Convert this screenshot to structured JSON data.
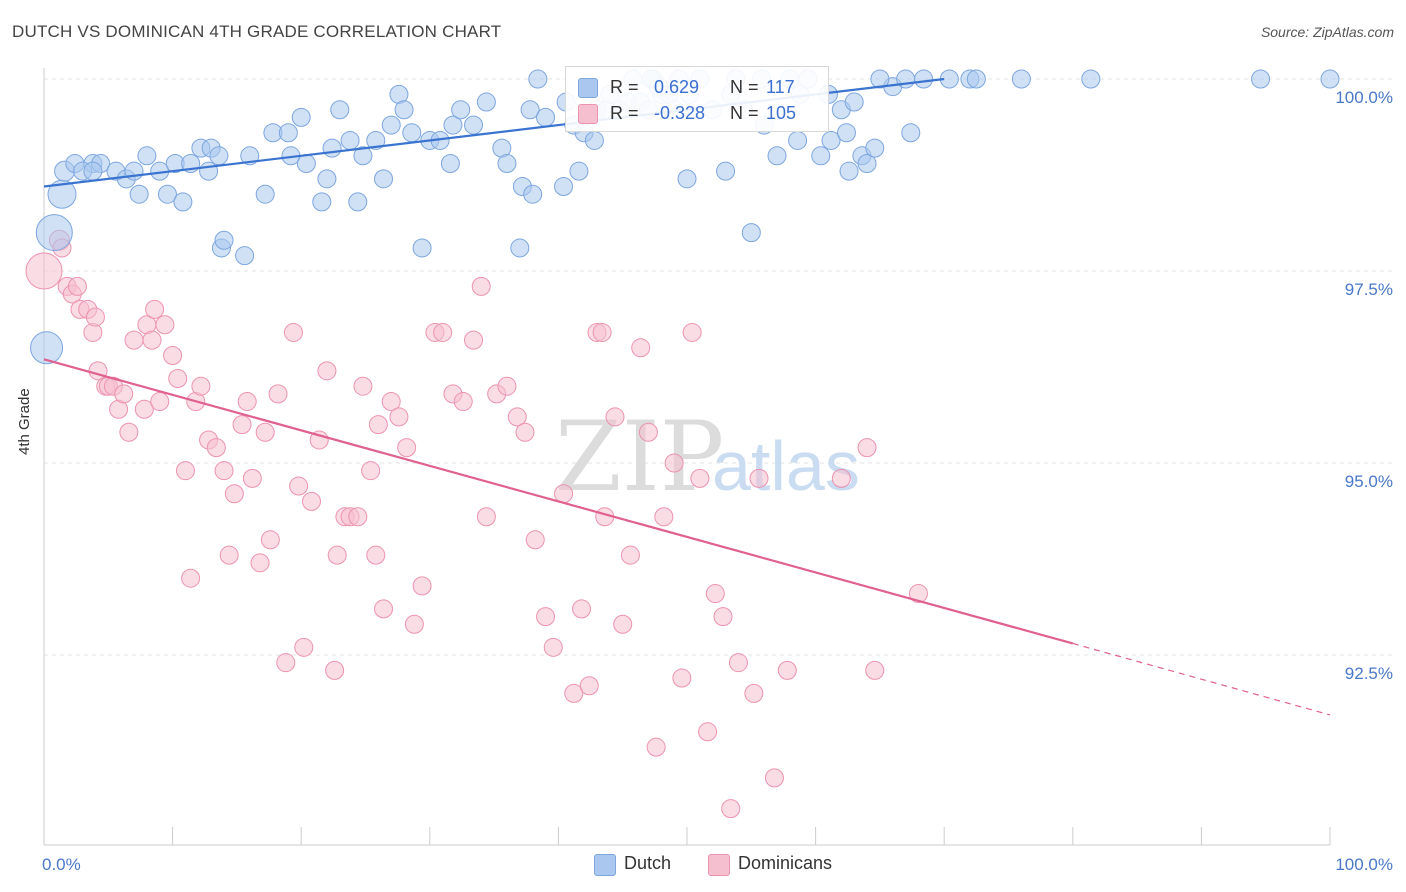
{
  "header": {
    "title": "DUTCH VS DOMINICAN 4TH GRADE CORRELATION CHART",
    "source": "Source: ZipAtlas.com"
  },
  "legend": {
    "series": [
      {
        "r_label": "R =",
        "r_value": "0.629",
        "n_label": "N =",
        "n_value": "117"
      },
      {
        "r_label": "R =",
        "r_value": "-0.328",
        "n_label": "N =",
        "n_value": "105"
      }
    ]
  },
  "bottom_legend": {
    "dutch": "Dutch",
    "dominicans": "Dominicans"
  },
  "watermark": {
    "zip": "ZIP",
    "atlas": "atlas"
  },
  "colors": {
    "dutch_fill": "#aac8ef",
    "dutch_stroke": "#7da6de",
    "dutch_line": "#3a74d0",
    "dom_fill": "#f6bfd0",
    "dom_stroke": "#ec93b0",
    "dom_line": "#e0608f",
    "tick_text": "#4a78c8",
    "grid": "#e3e3e3"
  },
  "chart_data": {
    "type": "scatter",
    "title": "DUTCH VS DOMINICAN 4TH GRADE CORRELATION CHART",
    "xlabel": "",
    "ylabel": "4th Grade",
    "xlim": [
      0,
      100
    ],
    "ylim": [
      90.25,
      100.25
    ],
    "x_tick_labels": [
      "0.0%",
      "100.0%"
    ],
    "y_ticks": [
      92.5,
      95.0,
      97.5,
      100.0
    ],
    "y_tick_labels": [
      "92.5%",
      "95.0%",
      "97.5%",
      "100.0%"
    ],
    "grid": true,
    "legend_position": "top-center",
    "series": [
      {
        "name": "Dutch",
        "r": 0.629,
        "n": 117,
        "trend": {
          "x": [
            0,
            70
          ],
          "y": [
            98.6,
            100.0
          ]
        },
        "points": [
          [
            1.4,
            98.5,
            14
          ],
          [
            0.8,
            98.0,
            18
          ],
          [
            0.2,
            96.5,
            16
          ],
          [
            1.6,
            98.8,
            10
          ],
          [
            2.4,
            98.9,
            9
          ],
          [
            3.8,
            98.9,
            9
          ],
          [
            4.4,
            98.9,
            9
          ],
          [
            3.0,
            98.8,
            9
          ],
          [
            3.8,
            98.8,
            9
          ],
          [
            5.6,
            98.8,
            9
          ],
          [
            6.4,
            98.7,
            9
          ],
          [
            7.0,
            98.8,
            9
          ],
          [
            8.0,
            99.0,
            9
          ],
          [
            9.0,
            98.8,
            9
          ],
          [
            7.4,
            98.5,
            9
          ],
          [
            9.6,
            98.5,
            9
          ],
          [
            10.2,
            98.9,
            9
          ],
          [
            10.8,
            98.4,
            9
          ],
          [
            11.4,
            98.9,
            9
          ],
          [
            12.2,
            99.1,
            9
          ],
          [
            12.8,
            98.8,
            9
          ],
          [
            13.0,
            99.1,
            9
          ],
          [
            13.6,
            99.0,
            9
          ],
          [
            13.8,
            97.8,
            9
          ],
          [
            15.6,
            97.7,
            9
          ],
          [
            14.0,
            97.9,
            9
          ],
          [
            16.0,
            99.0,
            9
          ],
          [
            17.2,
            98.5,
            9
          ],
          [
            17.8,
            99.3,
            9
          ],
          [
            19.0,
            99.3,
            9
          ],
          [
            19.2,
            99.0,
            9
          ],
          [
            20.0,
            99.5,
            9
          ],
          [
            20.4,
            98.9,
            9
          ],
          [
            22.4,
            99.1,
            9
          ],
          [
            22.0,
            98.7,
            9
          ],
          [
            21.6,
            98.4,
            9
          ],
          [
            23.0,
            99.6,
            9
          ],
          [
            23.8,
            99.2,
            9
          ],
          [
            24.4,
            98.4,
            9
          ],
          [
            24.8,
            99.0,
            9
          ],
          [
            25.8,
            99.2,
            9
          ],
          [
            26.4,
            98.7,
            9
          ],
          [
            27.0,
            99.4,
            9
          ],
          [
            27.6,
            99.8,
            9
          ],
          [
            28.0,
            99.6,
            9
          ],
          [
            28.6,
            99.3,
            9
          ],
          [
            29.4,
            97.8,
            9
          ],
          [
            30.0,
            99.2,
            9
          ],
          [
            30.8,
            99.2,
            9
          ],
          [
            31.8,
            99.4,
            9
          ],
          [
            31.6,
            98.9,
            9
          ],
          [
            32.4,
            99.6,
            9
          ],
          [
            33.4,
            99.4,
            9
          ],
          [
            34.4,
            99.7,
            9
          ],
          [
            35.6,
            99.1,
            9
          ],
          [
            36.0,
            98.9,
            9
          ],
          [
            37.2,
            98.6,
            9
          ],
          [
            37.8,
            99.6,
            9
          ],
          [
            38.4,
            100.0,
            9
          ],
          [
            39.0,
            99.5,
            9
          ],
          [
            40.4,
            98.6,
            9
          ],
          [
            40.6,
            99.7,
            9
          ],
          [
            41.2,
            99.4,
            9
          ],
          [
            41.6,
            98.8,
            9
          ],
          [
            42.0,
            99.3,
            9
          ],
          [
            42.8,
            99.2,
            9
          ],
          [
            43.0,
            99.6,
            9
          ],
          [
            43.8,
            99.6,
            9
          ],
          [
            44.0,
            99.8,
            9
          ],
          [
            44.8,
            99.6,
            9
          ],
          [
            45.4,
            99.7,
            9
          ],
          [
            45.8,
            100.0,
            9
          ],
          [
            46.4,
            99.7,
            9
          ],
          [
            47.4,
            100.0,
            9
          ],
          [
            48.0,
            99.8,
            9
          ],
          [
            48.6,
            99.8,
            9
          ],
          [
            49.4,
            100.0,
            9
          ],
          [
            50.2,
            99.8,
            9
          ],
          [
            51.0,
            100.0,
            9
          ],
          [
            52.0,
            99.6,
            9
          ],
          [
            53.4,
            99.8,
            9
          ],
          [
            53.8,
            100.0,
            9
          ],
          [
            54.4,
            99.6,
            9
          ],
          [
            56.0,
            99.4,
            9
          ],
          [
            57.0,
            99.0,
            9
          ],
          [
            58.0,
            100.0,
            9
          ],
          [
            58.6,
            99.2,
            9
          ],
          [
            59.4,
            100.0,
            9
          ],
          [
            60.4,
            99.0,
            9
          ],
          [
            61.2,
            99.2,
            9
          ],
          [
            63.6,
            99.0,
            9
          ],
          [
            62.4,
            99.3,
            9
          ],
          [
            64.0,
            98.9,
            9
          ],
          [
            66.0,
            99.9,
            9
          ],
          [
            67.0,
            100.0,
            9
          ],
          [
            68.4,
            100.0,
            9
          ],
          [
            62.6,
            98.8,
            9
          ],
          [
            64.6,
            99.1,
            9
          ],
          [
            67.4,
            99.3,
            9
          ],
          [
            70.4,
            100.0,
            9
          ],
          [
            72.0,
            100.0,
            9
          ],
          [
            50.0,
            98.7,
            9
          ],
          [
            53.0,
            98.8,
            9
          ],
          [
            55.0,
            98.0,
            9
          ],
          [
            47.0,
            99.6,
            9
          ],
          [
            37.0,
            97.8,
            9
          ],
          [
            38.0,
            98.5,
            9
          ],
          [
            47.8,
            99.9,
            9
          ],
          [
            55.8,
            100.0,
            9
          ],
          [
            58.8,
            99.8,
            9
          ],
          [
            61.0,
            99.8,
            9
          ],
          [
            62.0,
            99.6,
            9
          ],
          [
            63.0,
            99.7,
            9
          ],
          [
            65.0,
            100.0,
            9
          ],
          [
            72.5,
            100.0,
            9
          ],
          [
            76.0,
            100.0,
            9
          ],
          [
            81.4,
            100.0,
            9
          ],
          [
            94.6,
            100.0,
            9
          ],
          [
            100.0,
            100.0,
            9
          ],
          [
            47.2,
            100.0,
            9
          ],
          [
            49.0,
            99.6,
            9
          ]
        ]
      },
      {
        "name": "Dominicans",
        "r": -0.328,
        "n": 105,
        "trend": {
          "x": [
            0,
            80
          ],
          "y": [
            96.35,
            92.65
          ]
        },
        "trend_dashed": {
          "x": [
            80,
            100
          ],
          "y": [
            92.65,
            91.72
          ]
        },
        "points": [
          [
            0.0,
            97.5,
            18
          ],
          [
            1.2,
            97.9,
            10
          ],
          [
            1.4,
            97.8,
            9
          ],
          [
            1.8,
            97.3,
            9
          ],
          [
            2.2,
            97.2,
            9
          ],
          [
            2.6,
            97.3,
            9
          ],
          [
            2.8,
            97.0,
            9
          ],
          [
            3.4,
            97.0,
            9
          ],
          [
            3.8,
            96.7,
            9
          ],
          [
            4.0,
            96.9,
            9
          ],
          [
            4.2,
            96.2,
            9
          ],
          [
            4.8,
            96.0,
            9
          ],
          [
            5.0,
            96.0,
            9
          ],
          [
            5.4,
            96.0,
            9
          ],
          [
            5.8,
            95.7,
            9
          ],
          [
            6.2,
            95.9,
            9
          ],
          [
            6.6,
            95.4,
            9
          ],
          [
            7.0,
            96.6,
            9
          ],
          [
            7.8,
            95.7,
            9
          ],
          [
            8.0,
            96.8,
            9
          ],
          [
            8.4,
            96.6,
            9
          ],
          [
            8.6,
            97.0,
            9
          ],
          [
            9.0,
            95.8,
            9
          ],
          [
            9.4,
            96.8,
            9
          ],
          [
            10.0,
            96.4,
            9
          ],
          [
            10.4,
            96.1,
            9
          ],
          [
            11.0,
            94.9,
            9
          ],
          [
            11.4,
            93.5,
            9
          ],
          [
            11.8,
            95.8,
            9
          ],
          [
            12.2,
            96.0,
            9
          ],
          [
            12.8,
            95.3,
            9
          ],
          [
            13.4,
            95.2,
            9
          ],
          [
            14.0,
            94.9,
            9
          ],
          [
            14.4,
            93.8,
            9
          ],
          [
            14.8,
            94.6,
            9
          ],
          [
            15.4,
            95.5,
            9
          ],
          [
            15.8,
            95.8,
            9
          ],
          [
            16.2,
            94.8,
            9
          ],
          [
            16.8,
            93.7,
            9
          ],
          [
            17.2,
            95.4,
            9
          ],
          [
            17.6,
            94.0,
            9
          ],
          [
            18.2,
            95.9,
            9
          ],
          [
            18.8,
            92.4,
            9
          ],
          [
            19.4,
            96.7,
            9
          ],
          [
            19.8,
            94.7,
            9
          ],
          [
            20.2,
            92.6,
            9
          ],
          [
            20.8,
            94.5,
            9
          ],
          [
            21.4,
            95.3,
            9
          ],
          [
            22.0,
            96.2,
            9
          ],
          [
            22.6,
            92.3,
            9
          ],
          [
            22.8,
            93.8,
            9
          ],
          [
            23.4,
            94.3,
            9
          ],
          [
            23.8,
            94.3,
            9
          ],
          [
            24.4,
            94.3,
            9
          ],
          [
            24.8,
            96.0,
            9
          ],
          [
            25.4,
            94.9,
            9
          ],
          [
            25.8,
            93.8,
            9
          ],
          [
            26.0,
            95.5,
            9
          ],
          [
            26.4,
            93.1,
            9
          ],
          [
            27.0,
            95.8,
            9
          ],
          [
            27.6,
            95.6,
            9
          ],
          [
            28.2,
            95.2,
            9
          ],
          [
            28.8,
            92.9,
            9
          ],
          [
            29.4,
            93.4,
            9
          ],
          [
            30.4,
            96.7,
            9
          ],
          [
            31.0,
            96.7,
            9
          ],
          [
            31.8,
            95.9,
            9
          ],
          [
            32.6,
            95.8,
            9
          ],
          [
            33.4,
            96.6,
            9
          ],
          [
            34.0,
            97.3,
            9
          ],
          [
            34.4,
            94.3,
            9
          ],
          [
            35.2,
            95.9,
            9
          ],
          [
            36.0,
            96.0,
            9
          ],
          [
            36.8,
            95.6,
            9
          ],
          [
            37.4,
            95.4,
            9
          ],
          [
            38.2,
            94.0,
            9
          ],
          [
            39.0,
            93.0,
            9
          ],
          [
            39.6,
            92.6,
            9
          ],
          [
            40.4,
            94.6,
            9
          ],
          [
            41.2,
            92.0,
            9
          ],
          [
            41.8,
            93.1,
            9
          ],
          [
            42.4,
            92.1,
            9
          ],
          [
            43.0,
            96.7,
            9
          ],
          [
            43.4,
            96.7,
            9
          ],
          [
            43.6,
            94.3,
            9
          ],
          [
            44.4,
            95.6,
            9
          ],
          [
            45.0,
            92.9,
            9
          ],
          [
            45.6,
            93.8,
            9
          ],
          [
            46.4,
            96.5,
            9
          ],
          [
            47.0,
            95.4,
            9
          ],
          [
            47.6,
            91.3,
            9
          ],
          [
            48.2,
            94.3,
            9
          ],
          [
            49.0,
            95.0,
            9
          ],
          [
            49.6,
            92.2,
            9
          ],
          [
            50.4,
            96.7,
            9
          ],
          [
            51.0,
            94.8,
            9
          ],
          [
            51.6,
            91.5,
            9
          ],
          [
            52.2,
            93.3,
            9
          ],
          [
            52.8,
            93.0,
            9
          ],
          [
            53.4,
            90.5,
            9
          ],
          [
            54.0,
            92.4,
            9
          ],
          [
            55.2,
            92.0,
            9
          ],
          [
            56.8,
            90.9,
            9
          ],
          [
            55.6,
            94.8,
            9
          ],
          [
            57.8,
            92.3,
            9
          ],
          [
            62.0,
            94.8,
            9
          ],
          [
            64.6,
            92.3,
            9
          ],
          [
            64.0,
            95.2,
            9
          ],
          [
            68.0,
            93.3,
            9
          ]
        ]
      }
    ]
  }
}
